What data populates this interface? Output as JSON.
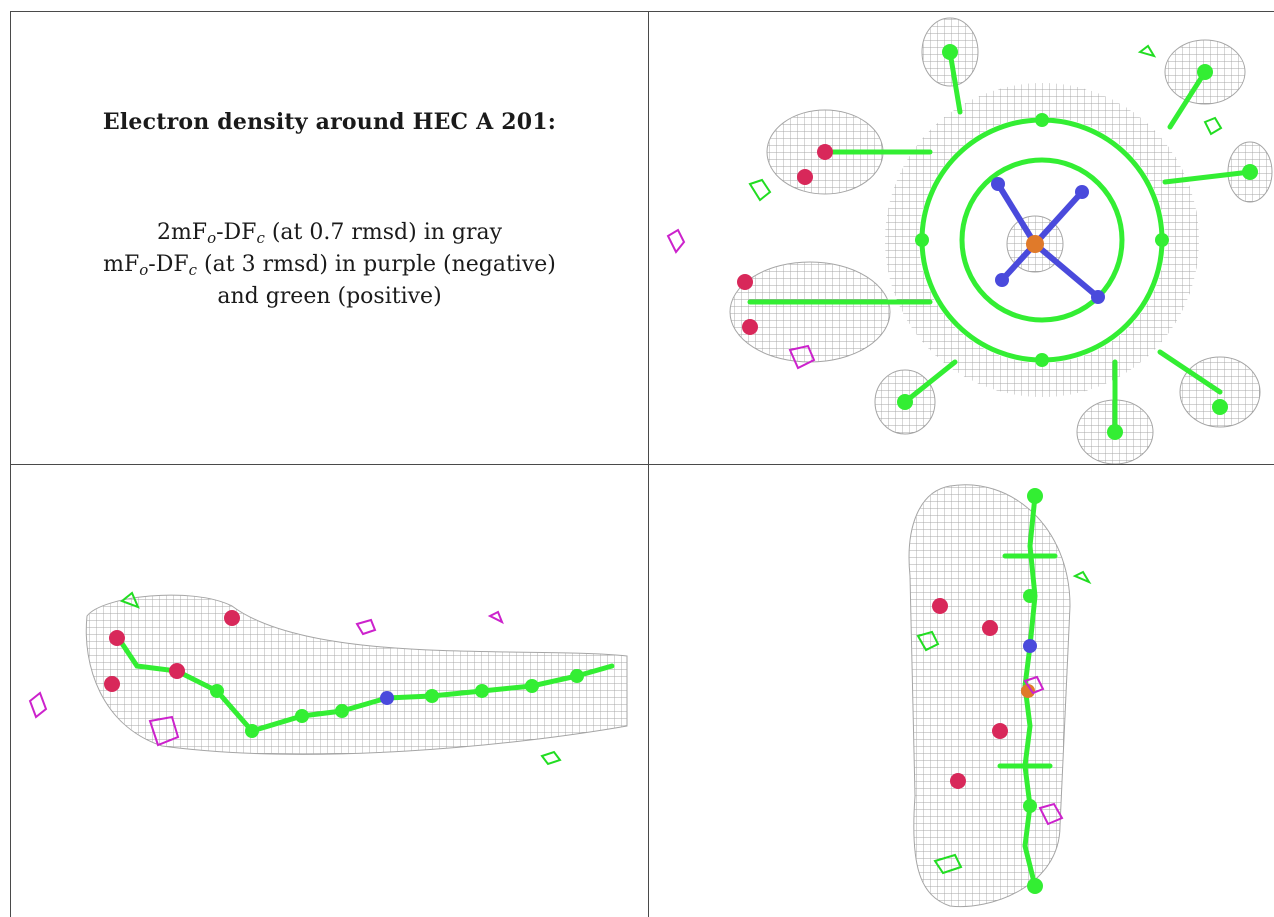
{
  "caption": {
    "title": "Electron density around HEC A 201:",
    "lines": [
      {
        "prefix": "2mF",
        "sub1": "o",
        "mid": "-DF",
        "sub2": "c",
        "suffix": " (at 0.7 rmsd) in gray"
      },
      {
        "prefix": "mF",
        "sub1": "o",
        "mid": "-DF",
        "sub2": "c",
        "suffix": " (at 3 rmsd) in purple (negative)"
      },
      {
        "text": "and green (positive)"
      }
    ]
  },
  "colors": {
    "mesh_gray": "#8a8a8a",
    "carbon_green": "#33ee33",
    "nitrogen_blue": "#4a4adc",
    "oxygen_red": "#d8285a",
    "iron_orange": "#e07a2a",
    "negative_purple": "#cc22cc",
    "positive_green": "#22dd22"
  }
}
